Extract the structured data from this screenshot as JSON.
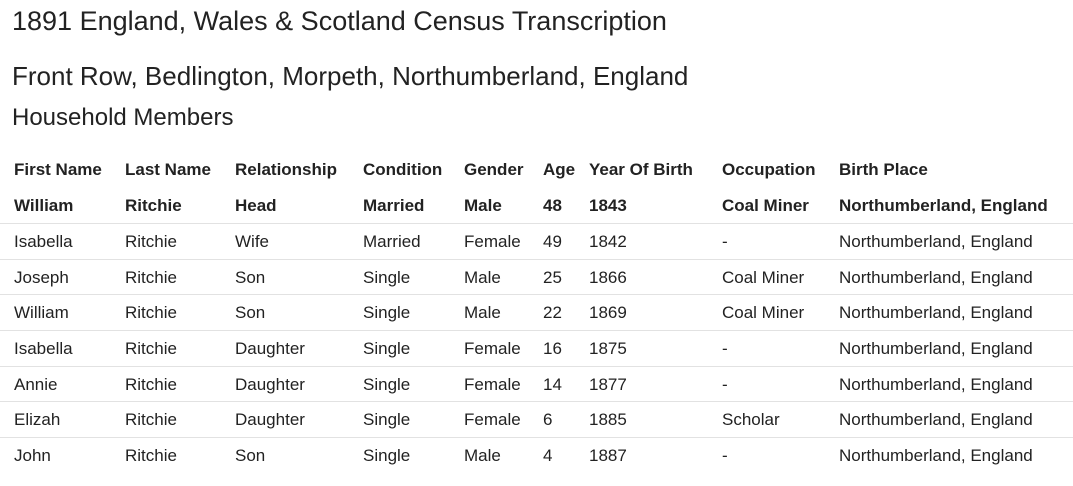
{
  "header": {
    "title": "1891 England, Wales & Scotland Census Transcription",
    "subtitle": "Front Row, Bedlington, Morpeth, Northumberland, England",
    "section": "Household Members"
  },
  "table": {
    "columns": [
      "First Name",
      "Last Name",
      "Relationship",
      "Condition",
      "Gender",
      "Age",
      "Year Of Birth",
      "Occupation",
      "Birth Place"
    ],
    "rows": [
      [
        "William",
        "Ritchie",
        "Head",
        "Married",
        "Male",
        48,
        1843,
        "Coal Miner",
        "Northumberland, England"
      ],
      [
        "Isabella",
        "Ritchie",
        "Wife",
        "Married",
        "Female",
        49,
        1842,
        "-",
        "Northumberland, England"
      ],
      [
        "Joseph",
        "Ritchie",
        "Son",
        "Single",
        "Male",
        25,
        1866,
        "Coal Miner",
        "Northumberland, England"
      ],
      [
        "William",
        "Ritchie",
        "Son",
        "Single",
        "Male",
        22,
        1869,
        "Coal Miner",
        "Northumberland, England"
      ],
      [
        "Isabella",
        "Ritchie",
        "Daughter",
        "Single",
        "Female",
        16,
        1875,
        "-",
        "Northumberland, England"
      ],
      [
        "Annie",
        "Ritchie",
        "Daughter",
        "Single",
        "Female",
        14,
        1877,
        "-",
        "Northumberland, England"
      ],
      [
        "Elizah",
        "Ritchie",
        "Daughter",
        "Single",
        "Female",
        6,
        1885,
        "Scholar",
        "Northumberland, England"
      ],
      [
        "John",
        "Ritchie",
        "Son",
        "Single",
        "Male",
        4,
        1887,
        "-",
        "Northumberland, England"
      ]
    ]
  }
}
